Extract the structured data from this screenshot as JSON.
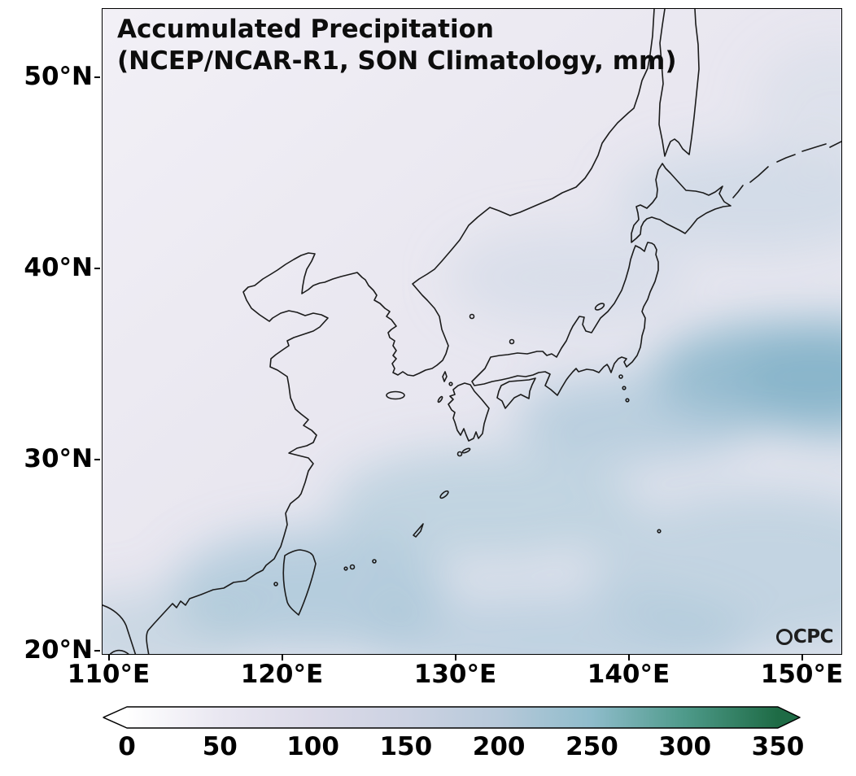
{
  "title": {
    "line1": "Accumulated Precipitation",
    "line2": "(NCEP/NCAR-R1, SON Climatology, mm)"
  },
  "logo": "CPC",
  "axes": {
    "lat_ticks": [
      "50°N",
      "40°N",
      "30°N",
      "20°N"
    ],
    "lon_ticks": [
      "110°E",
      "120°E",
      "130°E",
      "140°E",
      "150°E"
    ]
  },
  "colorbar": {
    "ticks": [
      "0",
      "50",
      "100",
      "150",
      "200",
      "250",
      "300",
      "350"
    ],
    "extend": "both",
    "min_color": "#ffffff",
    "max_color": "#1e6b45"
  },
  "chart_data": {
    "type": "map",
    "title": "Accumulated Precipitation",
    "dataset": "NCEP/NCAR-R1",
    "season": "SON Climatology",
    "units": "mm",
    "region": {
      "lon_range": [
        "110°E",
        "150°E"
      ],
      "lat_range": [
        "20°N",
        "50°N"
      ]
    },
    "colorbar_ticks": [
      0,
      50,
      100,
      150,
      200,
      250,
      300,
      350
    ],
    "colormap_stops": [
      "#ffffff",
      "#e9e7f1",
      "#dbdae8",
      "#ccd2e2",
      "#b7c9da",
      "#8fbccb",
      "#4e9a8a",
      "#1e6b45"
    ],
    "shading_summary": "Lightest values (<100 mm) over NE China and the northwest; broad 150-250 mm blue band across the Kuroshio region southeast of Japan, around the Ryukyus, Taiwan and the far southeast ocean.",
    "source_logo": "CPC"
  }
}
